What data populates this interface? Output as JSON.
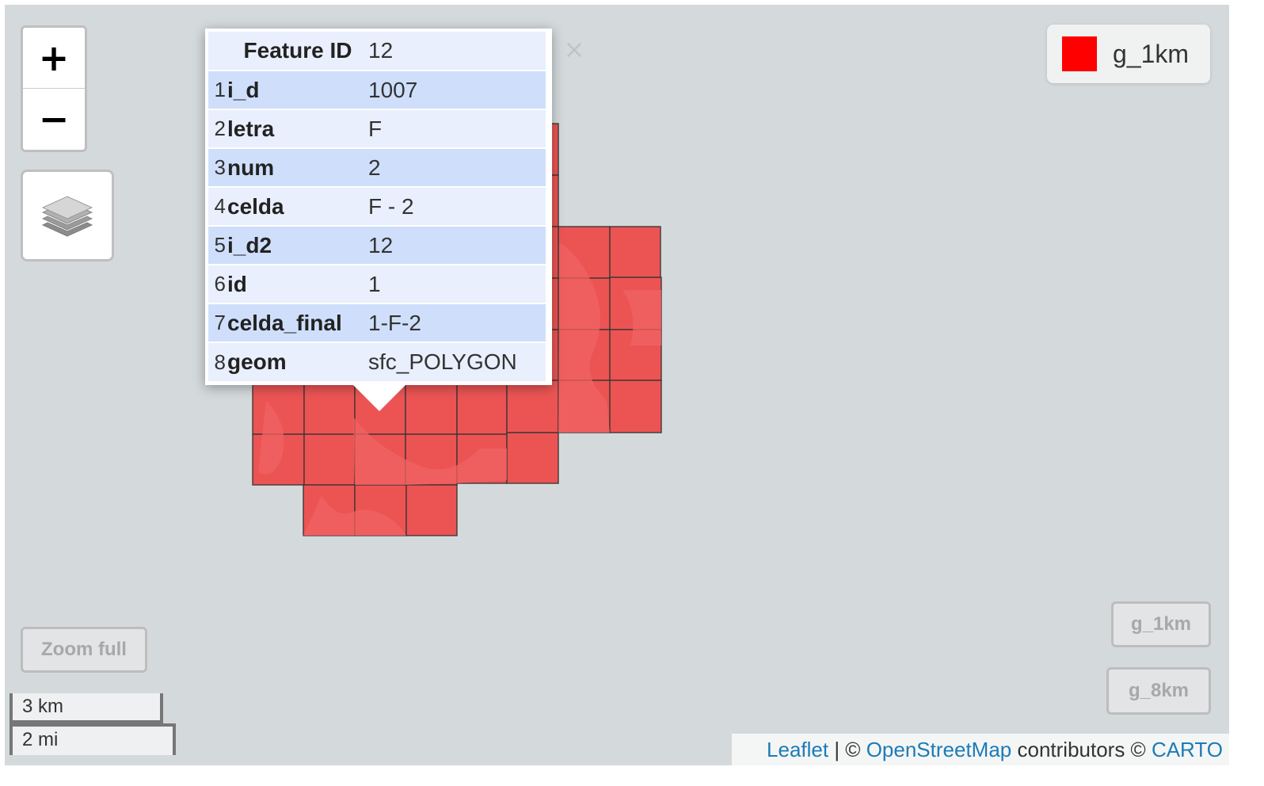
{
  "map": {
    "background_color": "#d4dadc",
    "fill_color": "#ec5454",
    "stroke_color": "#333333"
  },
  "zoom": {
    "in_label": "+",
    "out_label": "−"
  },
  "layers_control": {
    "icon": "layers-icon"
  },
  "popup": {
    "close_label": "×",
    "header": {
      "key": "Feature ID",
      "value": "12"
    },
    "rows": [
      {
        "index": "1",
        "key": "i_d",
        "value": "1007"
      },
      {
        "index": "2",
        "key": "letra",
        "value": "F"
      },
      {
        "index": "3",
        "key": "num",
        "value": "2"
      },
      {
        "index": "4",
        "key": "celda",
        "value": "F - 2"
      },
      {
        "index": "5",
        "key": "i_d2",
        "value": "12"
      },
      {
        "index": "6",
        "key": "id",
        "value": "1"
      },
      {
        "index": "7",
        "key": "celda_final",
        "value": "1-F-2"
      },
      {
        "index": "8",
        "key": "geom",
        "value": "sfc_POLYGON"
      }
    ]
  },
  "legend": {
    "swatch_color": "#ff0000",
    "label": "g_1km"
  },
  "buttons": {
    "zoom_full": "Zoom full",
    "g_1km": "g_1km",
    "g_8km": "g_8km"
  },
  "scale": {
    "metric": "3 km",
    "imperial": "2 mi"
  },
  "attribution": {
    "leaflet": "Leaflet",
    "sep": " | © ",
    "osm": "OpenStreetMap",
    "contrib": " contributors © ",
    "carto": "CARTO"
  }
}
